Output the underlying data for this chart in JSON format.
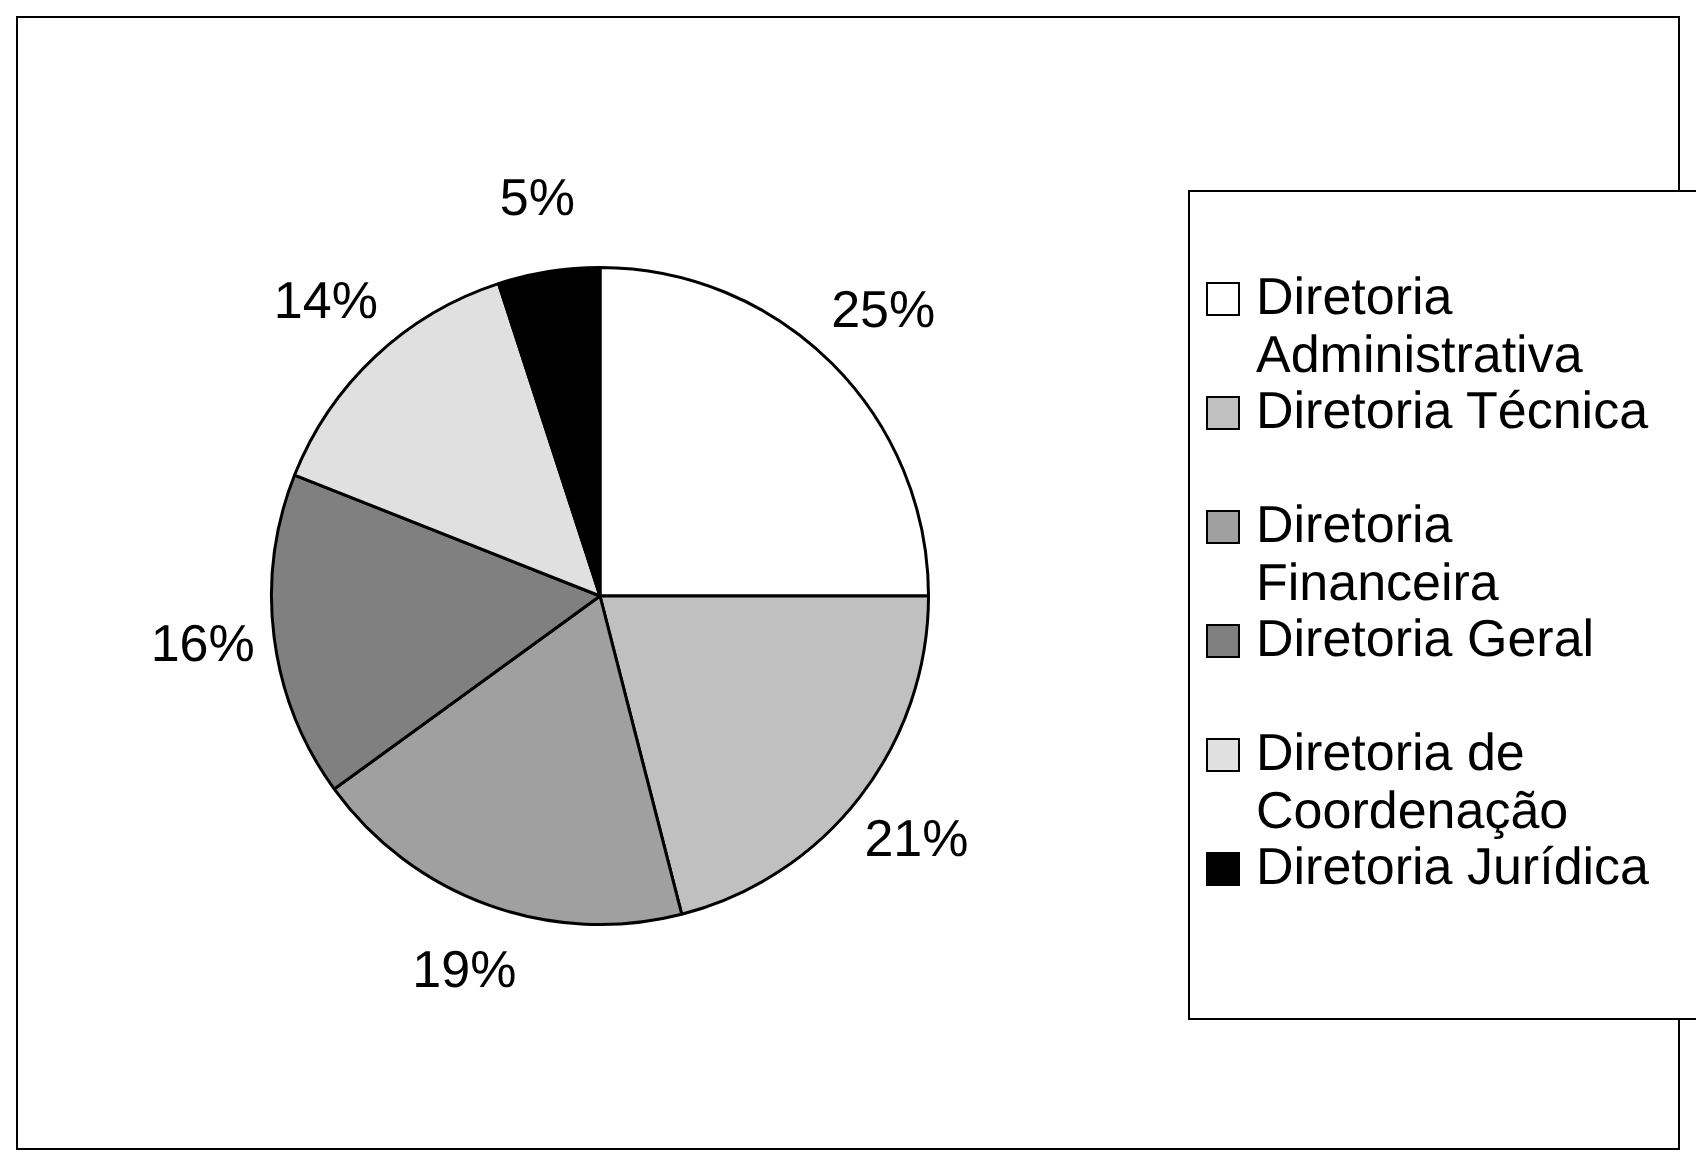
{
  "chart_data": {
    "type": "pie",
    "categories": [
      "Diretoria Administrativa",
      "Diretoria Técnica",
      "Diretoria Financeira",
      "Diretoria Geral",
      "Diretoria de Coordenação",
      "Diretoria Jurídica"
    ],
    "values": [
      25,
      21,
      19,
      16,
      14,
      5
    ],
    "colors": [
      "#ffffff",
      "#c0c0c0",
      "#a0a0a0",
      "#808080",
      "#e0e0e0",
      "#000000"
    ],
    "value_labels": [
      "25%",
      "21%",
      "19%",
      "16%",
      "14%",
      "5%"
    ],
    "legend": "right"
  }
}
